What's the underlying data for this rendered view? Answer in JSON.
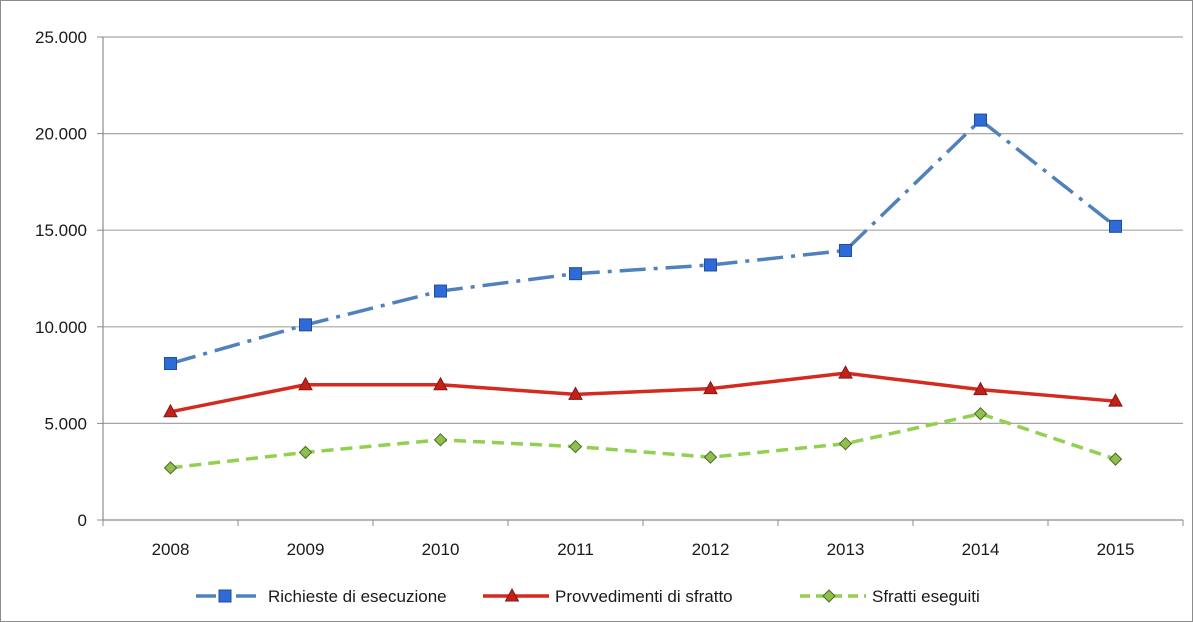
{
  "chart_data": {
    "type": "line",
    "title": "",
    "xlabel": "",
    "ylabel": "",
    "categories": [
      "2008",
      "2009",
      "2010",
      "2011",
      "2012",
      "2013",
      "2014",
      "2015"
    ],
    "ylim": [
      0,
      25000
    ],
    "yticks": [
      0,
      5000,
      10000,
      15000,
      20000,
      25000
    ],
    "ytick_labels": [
      "0",
      "5.000",
      "10.000",
      "15.000",
      "20.000",
      "25.000"
    ],
    "grid": true,
    "legend_position": "bottom",
    "series": [
      {
        "name": "Richieste di esecuzione",
        "values": [
          8100,
          10100,
          11850,
          12750,
          13200,
          13950,
          20700,
          15200
        ],
        "color": "#4f81bd",
        "marker_color": "#2e6bd6",
        "line_style": "dash-dot",
        "marker": "square"
      },
      {
        "name": "Provvedimenti di sfratto",
        "values": [
          5600,
          7000,
          7000,
          6500,
          6800,
          7600,
          6750,
          6150
        ],
        "color": "#d42a1f",
        "marker_color": "#c0221b",
        "line_style": "solid",
        "marker": "triangle"
      },
      {
        "name": "Sfratti eseguiti",
        "values": [
          2700,
          3500,
          4150,
          3800,
          3250,
          3950,
          5500,
          3150
        ],
        "color": "#92d050",
        "marker_color": "#8fbf4c",
        "line_style": "dashed",
        "marker": "diamond"
      }
    ]
  }
}
